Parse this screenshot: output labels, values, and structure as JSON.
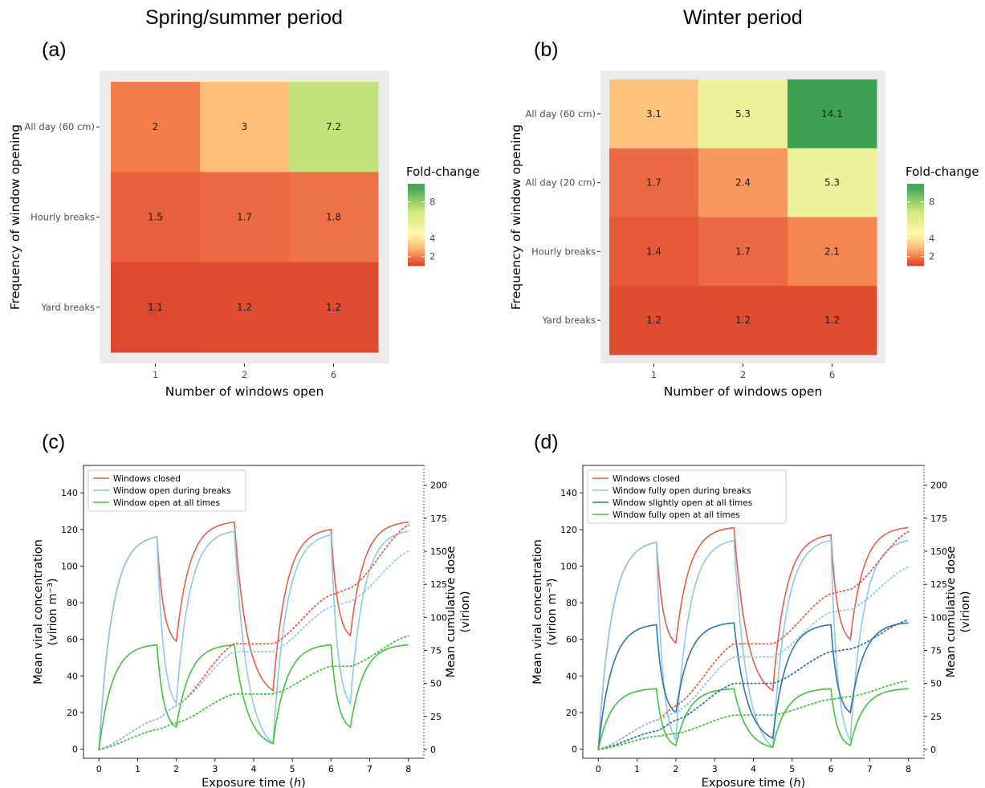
{
  "titles": {
    "left": "Spring/summer period",
    "right": "Winter period"
  },
  "panel_labels": {
    "a": "(a)",
    "b": "(b)",
    "c": "(c)",
    "d": "(d)"
  },
  "colors": {
    "closed": "#ec5b43",
    "open_breaks": "#8ec7ea",
    "slightly_open": "#2a76b2",
    "open_all": "#3cc43c",
    "heat_low": "#d9412b",
    "heat_mid": "#ffffbf",
    "heat_high": "#1a9850"
  },
  "chart_data": [
    {
      "id": "a",
      "type": "heatmap",
      "xlabel": "Number of windows open",
      "ylabel": "Frequency of window opening",
      "x_categories": [
        "1",
        "2",
        "6"
      ],
      "y_categories": [
        "All day (60 cm)",
        "Hourly breaks",
        "Yard breaks"
      ],
      "values": [
        [
          2,
          3,
          7.2
        ],
        [
          1.5,
          1.7,
          1.8
        ],
        [
          1.1,
          1.2,
          1.2
        ]
      ],
      "labels": [
        [
          "2",
          "3",
          "7.2"
        ],
        [
          "1.5",
          "1.7",
          "1.8"
        ],
        [
          "1.1",
          "1.2",
          "1.2"
        ]
      ],
      "legend": {
        "title": "Fold-change",
        "ticks": [
          2,
          4,
          8
        ],
        "range": [
          1,
          10
        ]
      }
    },
    {
      "id": "b",
      "type": "heatmap",
      "xlabel": "Number of windows open",
      "ylabel": "Frequency of window opening",
      "x_categories": [
        "1",
        "2",
        "6"
      ],
      "y_categories": [
        "All day (60 cm)",
        "All day (20 cm)",
        "Hourly breaks",
        "Yard breaks"
      ],
      "values": [
        [
          3.1,
          5.3,
          14.1
        ],
        [
          1.7,
          2.4,
          5.3
        ],
        [
          1.4,
          1.7,
          2.1
        ],
        [
          1.2,
          1.2,
          1.2
        ]
      ],
      "labels": [
        [
          "3.1",
          "5.3",
          "14.1"
        ],
        [
          "1.7",
          "2.4",
          "5.3"
        ],
        [
          "1.4",
          "1.7",
          "2.1"
        ],
        [
          "1.2",
          "1.2",
          "1.2"
        ]
      ],
      "legend": {
        "title": "Fold-change",
        "ticks": [
          2,
          4,
          8
        ],
        "range": [
          1,
          10
        ]
      }
    },
    {
      "id": "c",
      "type": "line",
      "xlabel": "Exposure time (h)",
      "ylabel": [
        "Mean viral concentration",
        "(virion m⁻³)"
      ],
      "ylabel2": [
        "Mean cumulative dose",
        "(virion)"
      ],
      "xlim": [
        -0.4,
        8.4
      ],
      "ylim": [
        -5,
        155
      ],
      "y2lim": [
        -6.7,
        215
      ],
      "xticks": [
        0,
        1,
        2,
        3,
        4,
        5,
        6,
        7,
        8
      ],
      "yticks": [
        0,
        20,
        40,
        60,
        80,
        100,
        120,
        140
      ],
      "y2ticks": [
        0,
        25,
        50,
        75,
        100,
        125,
        150,
        175,
        200
      ],
      "break_intervals": [
        [
          1.5,
          2.0
        ],
        [
          3.5,
          4.5
        ],
        [
          6.0,
          6.5
        ]
      ],
      "series": [
        {
          "name": "Windows closed",
          "color": "#ec5b43",
          "dotted": false,
          "plateau": 125,
          "open_level": 0,
          "open_tau": 0.6,
          "closed_tau": 0.85,
          "style": "closed",
          "y_at": [
            [
              0,
              0
            ],
            [
              1.5,
              116
            ],
            [
              2.0,
              59
            ],
            [
              3.5,
              124
            ],
            [
              4.5,
              32
            ],
            [
              6.0,
              120
            ],
            [
              6.5,
              62
            ],
            [
              8.0,
              124
            ]
          ]
        },
        {
          "name": "Window open during breaks",
          "color": "#8ec7ea",
          "dotted": false,
          "y_at": [
            [
              0,
              0
            ],
            [
              1.5,
              116
            ],
            [
              2.0,
              25
            ],
            [
              3.5,
              119
            ],
            [
              4.5,
              3
            ],
            [
              6.0,
              117
            ],
            [
              6.5,
              25
            ],
            [
              8.0,
              119
            ]
          ]
        },
        {
          "name": "Window open at all times",
          "color": "#3cc43c",
          "dotted": false,
          "y_at": [
            [
              0,
              0
            ],
            [
              1.5,
              57
            ],
            [
              2.0,
              12
            ],
            [
              3.5,
              57
            ],
            [
              4.5,
              3
            ],
            [
              6.0,
              57
            ],
            [
              6.5,
              12
            ],
            [
              8.0,
              57
            ]
          ]
        },
        {
          "name": "",
          "color": "#ec5b43",
          "dotted": true,
          "axis": "right",
          "y_at": [
            [
              0,
              0
            ],
            [
              1.5,
              23
            ],
            [
              2.0,
              33
            ],
            [
              3.5,
              80
            ],
            [
              4.5,
              80
            ],
            [
              6.0,
              117
            ],
            [
              6.5,
              122
            ],
            [
              8.0,
              170
            ]
          ]
        },
        {
          "name": "",
          "color": "#8ec7ea",
          "dotted": true,
          "axis": "right",
          "y_at": [
            [
              0,
              0
            ],
            [
              1.5,
              23
            ],
            [
              2.0,
              33
            ],
            [
              3.5,
              74
            ],
            [
              4.5,
              74
            ],
            [
              6.0,
              108
            ],
            [
              6.5,
              112
            ],
            [
              8.0,
              150
            ]
          ]
        },
        {
          "name": "",
          "color": "#3cc43c",
          "dotted": true,
          "axis": "right",
          "y_at": [
            [
              0,
              0
            ],
            [
              1.5,
              15
            ],
            [
              2.0,
              20
            ],
            [
              3.5,
              42
            ],
            [
              4.5,
              42
            ],
            [
              6.0,
              63
            ],
            [
              6.5,
              63
            ],
            [
              8.0,
              86
            ]
          ]
        }
      ]
    },
    {
      "id": "d",
      "type": "line",
      "xlabel": "Exposure time (h)",
      "ylabel": [
        "Mean viral concentration",
        "(virion m⁻³)"
      ],
      "ylabel2": [
        "Mean cumulative dose",
        "(virion)"
      ],
      "xlim": [
        -0.4,
        8.4
      ],
      "ylim": [
        -5,
        155
      ],
      "y2lim": [
        -6.7,
        215
      ],
      "xticks": [
        0,
        1,
        2,
        3,
        4,
        5,
        6,
        7,
        8
      ],
      "yticks": [
        0,
        20,
        40,
        60,
        80,
        100,
        120,
        140
      ],
      "y2ticks": [
        0,
        25,
        50,
        75,
        100,
        125,
        150,
        175,
        200
      ],
      "break_intervals": [
        [
          1.5,
          2.0
        ],
        [
          3.5,
          4.5
        ],
        [
          6.0,
          6.5
        ]
      ],
      "series": [
        {
          "name": "Windows closed",
          "color": "#ec5b43",
          "dotted": false,
          "y_at": [
            [
              0,
              0
            ],
            [
              1.5,
              113
            ],
            [
              2.0,
              58
            ],
            [
              3.5,
              121
            ],
            [
              4.5,
              32
            ],
            [
              6.0,
              117
            ],
            [
              6.5,
              60
            ],
            [
              8.0,
              121
            ]
          ]
        },
        {
          "name": "Window fully open during breaks",
          "color": "#8ec7ea",
          "dotted": false,
          "y_at": [
            [
              0,
              0
            ],
            [
              1.5,
              113
            ],
            [
              2.0,
              5
            ],
            [
              3.5,
              114
            ],
            [
              4.5,
              1
            ],
            [
              6.0,
              114
            ],
            [
              6.5,
              5
            ],
            [
              8.0,
              114
            ]
          ]
        },
        {
          "name": "Window slightly open at all times",
          "color": "#2a76b2",
          "dotted": false,
          "y_at": [
            [
              0,
              0
            ],
            [
              1.5,
              68
            ],
            [
              2.0,
              20
            ],
            [
              3.5,
              69
            ],
            [
              4.5,
              6
            ],
            [
              6.0,
              68
            ],
            [
              6.5,
              20
            ],
            [
              8.0,
              69
            ]
          ]
        },
        {
          "name": "Window fully open at all times",
          "color": "#3cc43c",
          "dotted": false,
          "y_at": [
            [
              0,
              0
            ],
            [
              1.5,
              33
            ],
            [
              2.0,
              2
            ],
            [
              3.5,
              33
            ],
            [
              4.5,
              1
            ],
            [
              6.0,
              33
            ],
            [
              6.5,
              2
            ],
            [
              8.0,
              33
            ]
          ]
        },
        {
          "name": "",
          "color": "#ec5b43",
          "dotted": true,
          "axis": "right",
          "y_at": [
            [
              0,
              0
            ],
            [
              1.5,
              22
            ],
            [
              2.0,
              33
            ],
            [
              3.5,
              80
            ],
            [
              4.5,
              80
            ],
            [
              6.0,
              118
            ],
            [
              6.5,
              121
            ],
            [
              8.0,
              165
            ]
          ]
        },
        {
          "name": "",
          "color": "#8ec7ea",
          "dotted": true,
          "axis": "right",
          "y_at": [
            [
              0,
              0
            ],
            [
              1.5,
              22
            ],
            [
              2.0,
              28
            ],
            [
              3.5,
              70
            ],
            [
              4.5,
              70
            ],
            [
              6.0,
              104
            ],
            [
              6.5,
              106
            ],
            [
              8.0,
              138
            ]
          ]
        },
        {
          "name": "",
          "color": "#2a76b2",
          "dotted": true,
          "axis": "right",
          "y_at": [
            [
              0,
              0
            ],
            [
              1.5,
              14
            ],
            [
              2.0,
              22
            ],
            [
              3.5,
              50
            ],
            [
              4.5,
              50
            ],
            [
              6.0,
              74
            ],
            [
              6.5,
              76
            ],
            [
              8.0,
              98
            ]
          ]
        },
        {
          "name": "",
          "color": "#3cc43c",
          "dotted": true,
          "axis": "right",
          "y_at": [
            [
              0,
              0
            ],
            [
              1.5,
              10
            ],
            [
              2.0,
              12
            ],
            [
              3.5,
              26
            ],
            [
              4.5,
              26
            ],
            [
              6.0,
              38
            ],
            [
              6.5,
              40
            ],
            [
              8.0,
              52
            ]
          ]
        }
      ]
    }
  ]
}
